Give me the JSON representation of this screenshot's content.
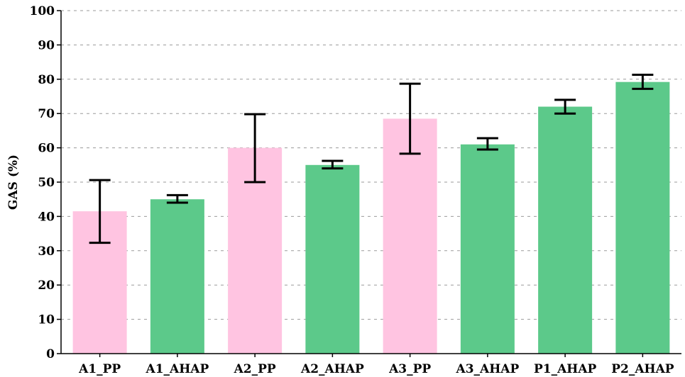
{
  "chart_data": {
    "type": "bar",
    "title": "",
    "xlabel": "",
    "ylabel": "GAS (%)",
    "ylim": [
      0,
      100
    ],
    "yticks": [
      0,
      10,
      20,
      30,
      40,
      50,
      60,
      70,
      80,
      90,
      100
    ],
    "grid": true,
    "categories": [
      "A1_PP",
      "A1_AHAP",
      "A2_PP",
      "A2_AHAP",
      "A3_PP",
      "A3_AHAP",
      "P1_AHAP",
      "P2_AHAP"
    ],
    "values": [
      41.5,
      45,
      60,
      55,
      68.5,
      61,
      72,
      79.2
    ],
    "error_low": [
      32.3,
      44,
      50,
      54,
      58.3,
      59.5,
      70,
      77.2
    ],
    "error_high": [
      50.6,
      46.2,
      69.8,
      56.2,
      78.7,
      62.8,
      74,
      81.3
    ],
    "colors": [
      "#ffc4e1",
      "#5cc98a",
      "#ffc4e1",
      "#5cc98a",
      "#ffc4e1",
      "#5cc98a",
      "#5cc98a",
      "#5cc98a"
    ]
  }
}
